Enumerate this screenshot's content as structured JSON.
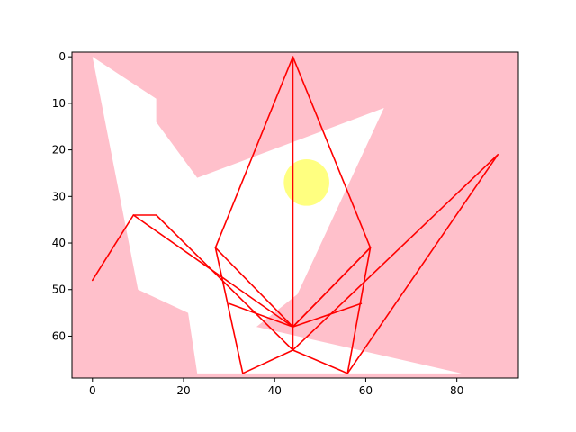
{
  "chart_data": {
    "type": "image",
    "title": "",
    "xlabel": "",
    "ylabel": "",
    "xlim": [
      -4.5,
      93.5
    ],
    "ylim": [
      69,
      -1
    ],
    "y_inverted": true,
    "grid": false,
    "x_ticks": [
      0,
      20,
      40,
      60,
      80
    ],
    "y_ticks": [
      0,
      10,
      20,
      30,
      40,
      50,
      60
    ],
    "colors": {
      "background": "#ffc0cb",
      "white_region": "#ffffff",
      "sun": "#ffff80",
      "lines": "#ff0000"
    },
    "white_region_vertices": [
      [
        0,
        0
      ],
      [
        14,
        9
      ],
      [
        14,
        14
      ],
      [
        23,
        26
      ],
      [
        64,
        11
      ],
      [
        45,
        51
      ],
      [
        36,
        58
      ],
      [
        81,
        68
      ],
      [
        23,
        68
      ],
      [
        21,
        55
      ],
      [
        10,
        50
      ],
      [
        0,
        0
      ]
    ],
    "sun": {
      "cx": 47,
      "cy": 27,
      "r": 5
    },
    "red_polylines": [
      [
        [
          44,
          0
        ],
        [
          27,
          41
        ],
        [
          44,
          58
        ],
        [
          61,
          41
        ],
        [
          44,
          0
        ]
      ],
      [
        [
          44,
          0
        ],
        [
          44,
          63
        ]
      ],
      [
        [
          0,
          48
        ],
        [
          9,
          34
        ],
        [
          14,
          34
        ],
        [
          44,
          63
        ],
        [
          89,
          21
        ],
        [
          56,
          68
        ],
        [
          44,
          63
        ],
        [
          33,
          68
        ],
        [
          27,
          41
        ]
      ],
      [
        [
          9,
          34
        ],
        [
          44,
          58
        ],
        [
          59,
          53
        ]
      ],
      [
        [
          30,
          53
        ],
        [
          44,
          58
        ]
      ],
      [
        [
          61,
          41
        ],
        [
          56,
          68
        ]
      ],
      [
        [
          44,
          58
        ],
        [
          61,
          41
        ]
      ]
    ]
  }
}
